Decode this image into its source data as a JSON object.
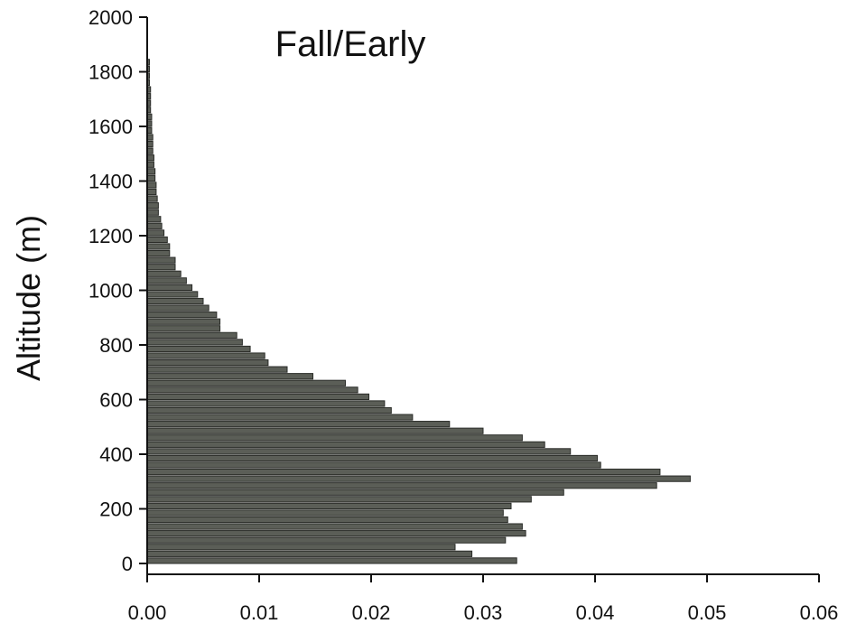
{
  "chart_data": {
    "type": "bar",
    "orientation": "horizontal",
    "title": "Fall/Early",
    "xlabel": "",
    "ylabel": "Altitude (m)",
    "xlim": [
      0,
      0.06
    ],
    "ylim": [
      0,
      2000
    ],
    "xticks": [
      "0.00",
      "0.01",
      "0.02",
      "0.03",
      "0.04",
      "0.05",
      "0.06"
    ],
    "yticks": [
      "0",
      "200",
      "400",
      "600",
      "800",
      "1000",
      "1200",
      "1400",
      "1600",
      "1800",
      "2000"
    ],
    "grid": false,
    "legend": "none",
    "colors": {
      "bar_fill": "#5b5e57",
      "bar_edge": "#2a2c28",
      "axis": "#111111"
    },
    "bin_width_m": 25,
    "altitudes": [
      0,
      25,
      50,
      75,
      100,
      125,
      150,
      175,
      200,
      225,
      250,
      275,
      300,
      325,
      350,
      375,
      400,
      425,
      450,
      475,
      500,
      525,
      550,
      575,
      600,
      625,
      650,
      675,
      700,
      725,
      750,
      775,
      800,
      825,
      850,
      875,
      900,
      925,
      950,
      975,
      1000,
      1025,
      1050,
      1075,
      1100,
      1125,
      1150,
      1175,
      1200,
      1225,
      1250,
      1275,
      1300,
      1325,
      1350,
      1375,
      1400,
      1425,
      1450,
      1475,
      1500,
      1525,
      1550,
      1575,
      1600,
      1625,
      1650,
      1675,
      1700,
      1725,
      1750,
      1775,
      1800,
      1825
    ],
    "values": [
      0.033,
      0.029,
      0.0275,
      0.032,
      0.0338,
      0.0335,
      0.0322,
      0.0318,
      0.0325,
      0.0343,
      0.0372,
      0.0455,
      0.0485,
      0.0458,
      0.0405,
      0.0402,
      0.0378,
      0.0355,
      0.0335,
      0.03,
      0.027,
      0.0237,
      0.0218,
      0.0212,
      0.0198,
      0.0188,
      0.0177,
      0.0148,
      0.0125,
      0.0108,
      0.0105,
      0.0092,
      0.0085,
      0.008,
      0.0065,
      0.0065,
      0.0062,
      0.0055,
      0.005,
      0.0045,
      0.004,
      0.0035,
      0.003,
      0.0025,
      0.0025,
      0.002,
      0.002,
      0.0018,
      0.0015,
      0.0013,
      0.0012,
      0.001,
      0.001,
      0.0009,
      0.0008,
      0.0008,
      0.0007,
      0.0007,
      0.0006,
      0.0006,
      0.0005,
      0.0005,
      0.0005,
      0.0004,
      0.0004,
      0.0004,
      0.0003,
      0.0003,
      0.0003,
      0.0003,
      0.0002,
      0.0002,
      0.0002,
      0.0002
    ]
  }
}
